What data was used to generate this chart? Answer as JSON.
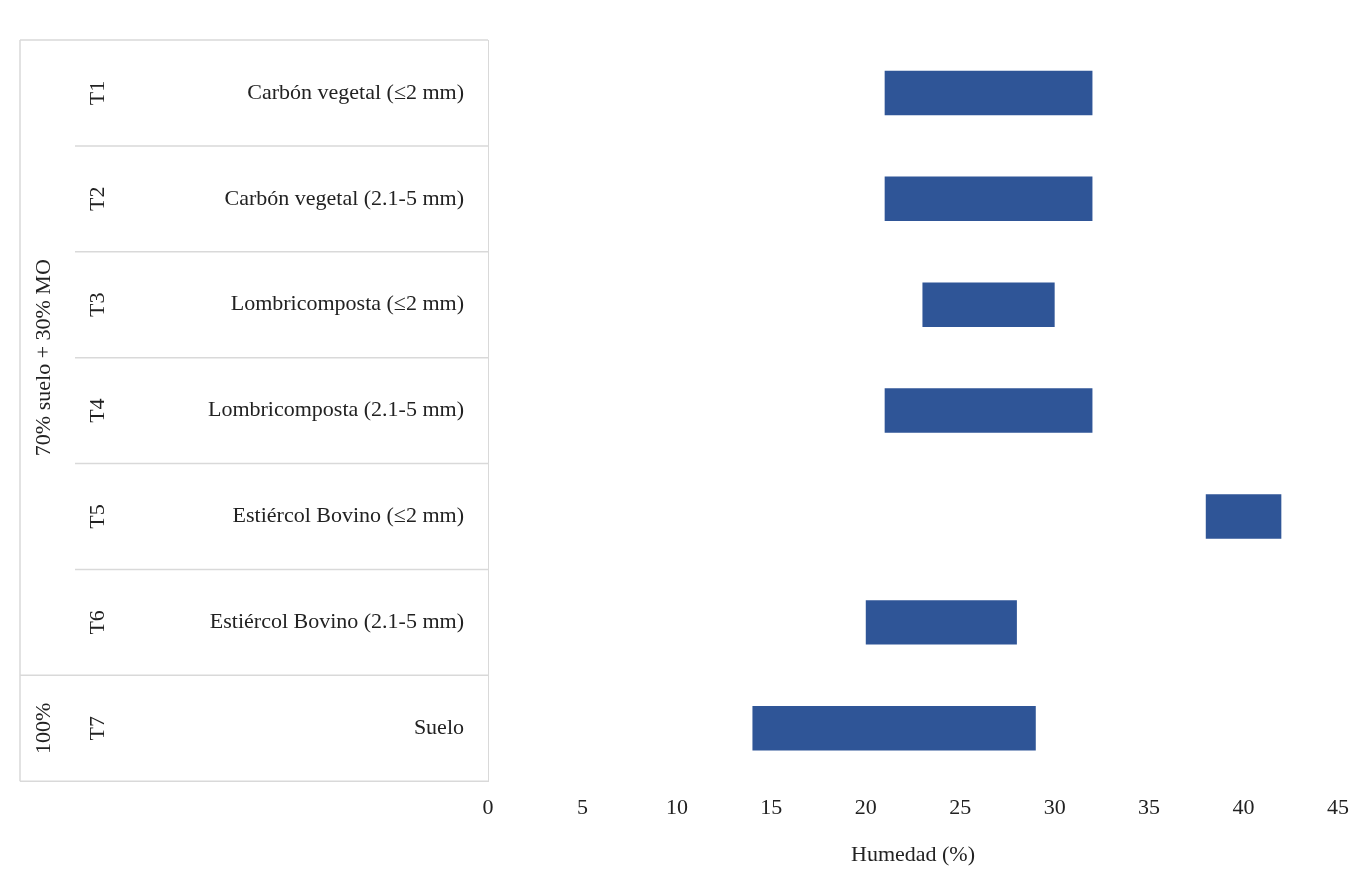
{
  "chart_data": {
    "type": "bar",
    "orientation": "horizontal",
    "categories": [
      "Carbón vegetal (≤2 mm)",
      "Carbón vegetal (2.1-5 mm)",
      "Lombricomposta (≤2 mm)",
      "Lombricomposta (2.1-5 mm)",
      "Estiércol Bovino (≤2 mm)",
      "Estiércol Bovino (2.1-5 mm)",
      "Suelo"
    ],
    "base": [
      21,
      21,
      23,
      21,
      38,
      20,
      14
    ],
    "values": [
      11,
      11,
      7,
      11,
      4,
      8,
      15
    ],
    "color": "#2f5597",
    "xlim": [
      0,
      45
    ],
    "xticks": [
      0,
      5,
      10,
      15,
      20,
      25,
      30,
      35,
      40,
      45
    ],
    "xlabel": "Humedad (%)",
    "annotations": [
      "T1",
      "T2",
      "T3",
      "T4",
      "T5",
      "T6",
      "T7",
      "70% suelo + 30% MO",
      "100%"
    ]
  }
}
